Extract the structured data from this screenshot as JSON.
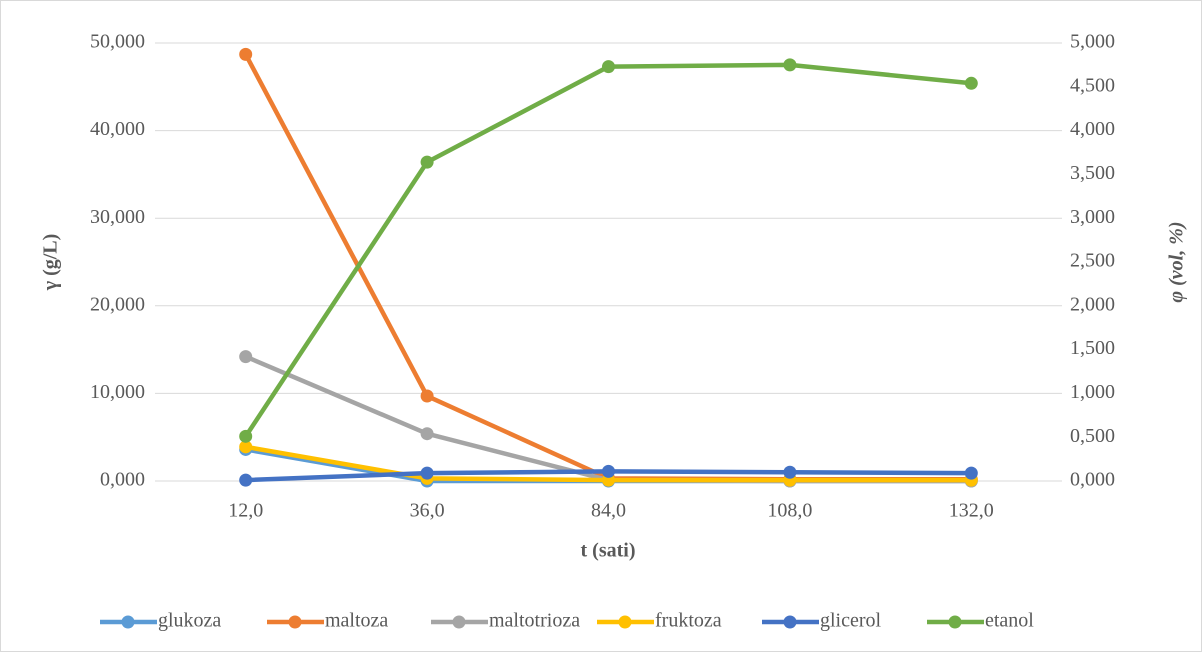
{
  "chart_data": {
    "type": "line",
    "xlabel": "t (sati)",
    "ylabel": "γ (g/L)",
    "y2label": "φ (vol, %)",
    "categories": [
      "12,0",
      "36,0",
      "84,0",
      "108,0",
      "132,0"
    ],
    "series": [
      {
        "name": "glukoza",
        "color": "#5b9bd5",
        "values": [
          3.6,
          0,
          0,
          0,
          0
        ]
      },
      {
        "name": "maltoza",
        "color": "#ed7d31",
        "values": [
          48.7,
          9.7,
          0.3,
          0.2,
          0.2
        ]
      },
      {
        "name": "maltotrioza",
        "color": "#a5a5a5",
        "values": [
          14.2,
          5.4,
          0.1,
          0,
          0
        ]
      },
      {
        "name": "fruktoza",
        "color": "#ffc000",
        "values": [
          3.9,
          0.3,
          0.1,
          0.1,
          0.1
        ]
      },
      {
        "name": "glicerol",
        "color": "#4472c4",
        "values": [
          0.1,
          0.9,
          1.1,
          1.0,
          0.9
        ]
      },
      {
        "name": "etanol",
        "color": "#70ad47",
        "axis": "y2",
        "values": [
          0.51,
          3.64,
          4.73,
          4.75,
          4.54
        ]
      }
    ],
    "ylim": [
      0,
      50
    ],
    "yticks": [
      {
        "value": 0,
        "label": "0,000"
      },
      {
        "value": 10,
        "label": "10,000"
      },
      {
        "value": 20,
        "label": "20,000"
      },
      {
        "value": 30,
        "label": "30,000"
      },
      {
        "value": 40,
        "label": "40,000"
      },
      {
        "value": 50,
        "label": "50,000"
      }
    ],
    "y2lim": [
      0,
      5
    ],
    "y2ticks": [
      {
        "value": 0,
        "label": "0,000"
      },
      {
        "value": 0.5,
        "label": "0,500"
      },
      {
        "value": 1,
        "label": "1,000"
      },
      {
        "value": 1.5,
        "label": "1,500"
      },
      {
        "value": 2,
        "label": "2,000"
      },
      {
        "value": 2.5,
        "label": "2,500"
      },
      {
        "value": 3,
        "label": "3,000"
      },
      {
        "value": 3.5,
        "label": "3,500"
      },
      {
        "value": 4,
        "label": "4,000"
      },
      {
        "value": 4.5,
        "label": "4,500"
      },
      {
        "value": 5,
        "label": "5,000"
      }
    ],
    "grid": true,
    "legend": "bottom"
  }
}
